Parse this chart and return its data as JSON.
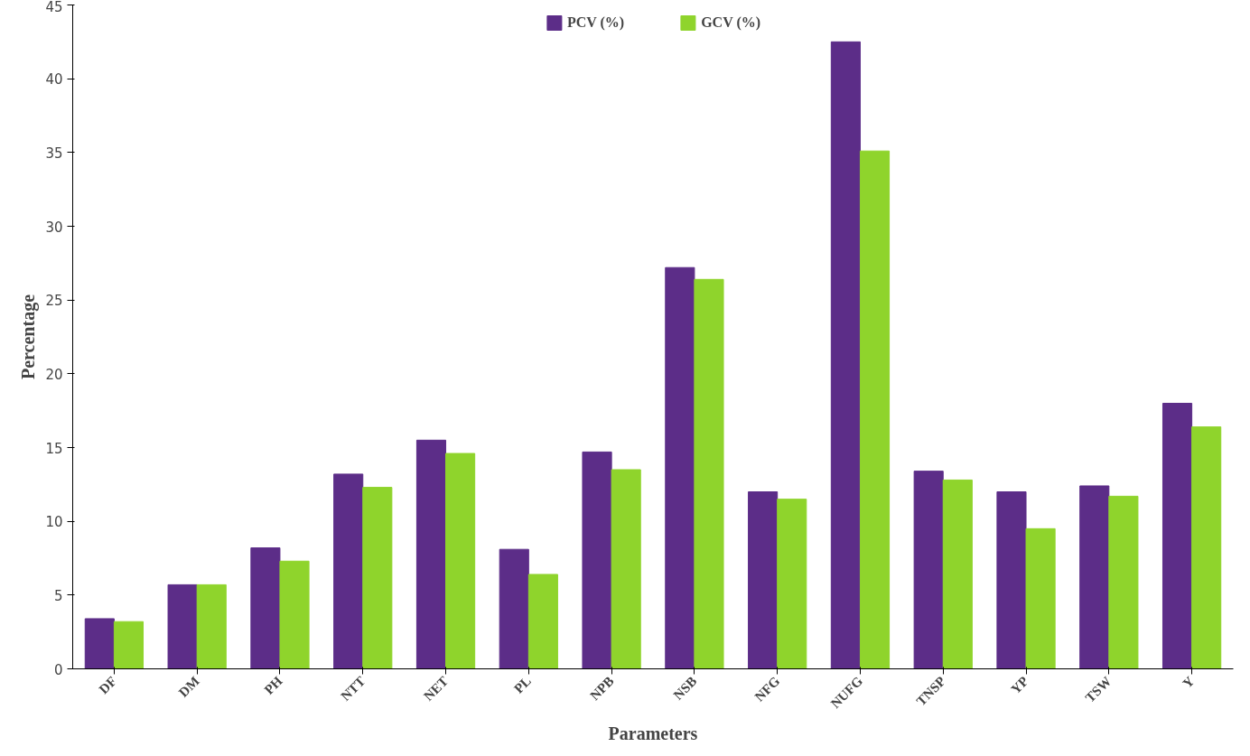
{
  "chart_data": {
    "type": "bar",
    "xlabel": "Parameters",
    "ylabel": "Percentage",
    "categories": [
      "DF",
      "DM",
      "PH",
      "NTT",
      "NET",
      "PL",
      "NPB",
      "NSB",
      "NFG",
      "NUFG",
      "TNSP",
      "YP",
      "TSW",
      "Y"
    ],
    "series": [
      {
        "name": "PCV (%)",
        "color": "#5c2d88",
        "values": [
          3.4,
          5.7,
          8.2,
          13.2,
          15.5,
          8.1,
          14.7,
          27.2,
          12.0,
          42.5,
          13.4,
          12.0,
          12.4,
          18.0
        ]
      },
      {
        "name": "GCV (%)",
        "color": "#8fd42c",
        "values": [
          3.2,
          5.7,
          7.3,
          12.3,
          14.6,
          6.4,
          13.5,
          26.4,
          11.5,
          35.1,
          12.8,
          9.5,
          11.7,
          16.4
        ]
      }
    ],
    "ylim": [
      0,
      45
    ],
    "yticks": [
      0,
      5,
      10,
      15,
      20,
      25,
      30,
      35,
      40,
      45
    ],
    "grid": false,
    "legend": "top"
  }
}
